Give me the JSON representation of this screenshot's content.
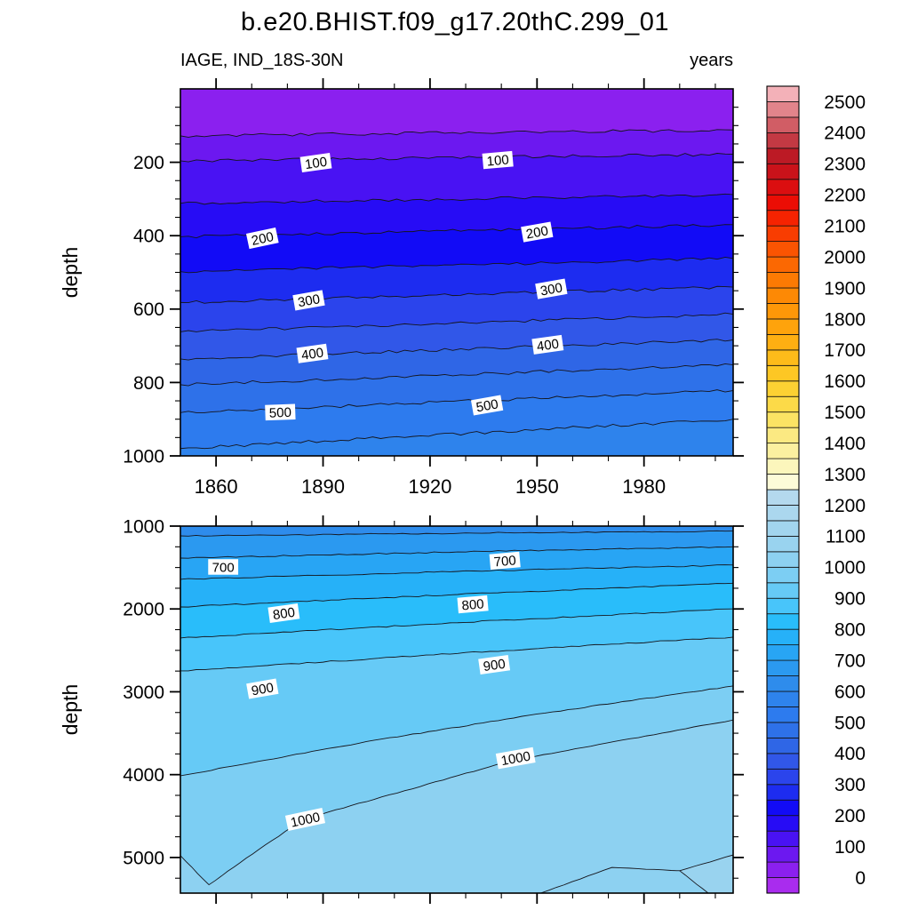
{
  "title": "b.e20.BHIST.f09_g17.20thC.299_01",
  "field_label": "IAGE, IND_18S-30N",
  "units_label": "years",
  "colorbar": {
    "value_min": -50,
    "value_step": 50,
    "tick_labels": [
      "0",
      "100",
      "200",
      "300",
      "400",
      "500",
      "600",
      "700",
      "800",
      "900",
      "1000",
      "1100",
      "1200",
      "1300",
      "1400",
      "1500",
      "1600",
      "1700",
      "1800",
      "1900",
      "2000",
      "2100",
      "2200",
      "2300",
      "2400",
      "2500"
    ],
    "cell_colors": [
      "#A92CEE",
      "#8B20EF",
      "#6C18F0",
      "#4912F3",
      "#270CF5",
      "#120BF6",
      "#1D2CF0",
      "#2B44EC",
      "#3157E8",
      "#2F66E6",
      "#2E71E9",
      "#2D7BEE",
      "#2E83EC",
      "#2E8CEC",
      "#2B99F0",
      "#28A5F4",
      "#26B1F8",
      "#29BDFA",
      "#48C5FA",
      "#66CAF6",
      "#7CCEF3",
      "#8DD1F1",
      "#99D3EF",
      "#A2D5EE",
      "#ABD7EE",
      "#B4D9EE",
      "#FDFBD8",
      "#FCF6BC",
      "#FBF0A0",
      "#FBE982",
      "#FBE364",
      "#FCDA48",
      "#FCD133",
      "#FDC724",
      "#FDBB1A",
      "#FEAF12",
      "#FEA30C",
      "#FE9708",
      "#FD8905",
      "#FC7A03",
      "#FB6802",
      "#FA5402",
      "#F83D01",
      "#F52301",
      "#EB0D05",
      "#DB0E10",
      "#CA121A",
      "#BC1A25",
      "#C33943",
      "#D15D65",
      "#E2848B",
      "#F3B1B8"
    ]
  },
  "chart_data": [
    {
      "type": "contour-filled",
      "panel": "upper",
      "x_range": [
        1850,
        2005
      ],
      "x_major_ticks": [
        1860,
        1890,
        1920,
        1950,
        1980
      ],
      "x_tick_labels": [
        "1860",
        "1890",
        "1920",
        "1950",
        "1980"
      ],
      "x_minor_step": 10,
      "y_range": [
        0,
        1000
      ],
      "y_major_ticks": [
        200,
        400,
        600,
        800,
        1000
      ],
      "y_minor_step": 50,
      "ylabel": "depth",
      "grid": false,
      "base_level": 0,
      "contour_interval": 50,
      "wiggle": 1.7,
      "contours": [
        {
          "level": 50,
          "points": [
            [
              1850,
              128
            ],
            [
              2005,
              112
            ]
          ]
        },
        {
          "level": 100,
          "points": [
            [
              1850,
              196
            ],
            [
              2005,
              178
            ]
          ]
        },
        {
          "level": 150,
          "points": [
            [
              1850,
              312
            ],
            [
              2005,
              288
            ]
          ]
        },
        {
          "level": 200,
          "points": [
            [
              1850,
              403
            ],
            [
              2005,
              370
            ]
          ]
        },
        {
          "level": 250,
          "points": [
            [
              1850,
              498
            ],
            [
              2005,
              462
            ]
          ]
        },
        {
          "level": 300,
          "points": [
            [
              1850,
              582
            ],
            [
              2005,
              540
            ]
          ]
        },
        {
          "level": 350,
          "points": [
            [
              1850,
              662
            ],
            [
              2005,
              614
            ]
          ]
        },
        {
          "level": 400,
          "points": [
            [
              1850,
              736
            ],
            [
              2005,
              684
            ]
          ]
        },
        {
          "level": 450,
          "points": [
            [
              1850,
              806
            ],
            [
              2005,
              752
            ]
          ]
        },
        {
          "level": 500,
          "points": [
            [
              1850,
              882
            ],
            [
              2005,
              822
            ]
          ]
        },
        {
          "level": 550,
          "points": [
            [
              1850,
              980
            ],
            [
              2005,
              900
            ]
          ]
        }
      ],
      "contour_labels": [
        {
          "text": "100",
          "year": 1888,
          "depth": 201,
          "rot": -8
        },
        {
          "text": "100",
          "year": 1939,
          "depth": 194,
          "rot": -5
        },
        {
          "text": "200",
          "year": 1873,
          "depth": 407,
          "rot": -12
        },
        {
          "text": "200",
          "year": 1950,
          "depth": 390,
          "rot": -10
        },
        {
          "text": "300",
          "year": 1886,
          "depth": 576,
          "rot": -10
        },
        {
          "text": "300",
          "year": 1954,
          "depth": 545,
          "rot": -10
        },
        {
          "text": "400",
          "year": 1887,
          "depth": 721,
          "rot": -8
        },
        {
          "text": "400",
          "year": 1953,
          "depth": 697,
          "rot": -8
        },
        {
          "text": "500",
          "year": 1878,
          "depth": 881,
          "rot": -2
        },
        {
          "text": "500",
          "year": 1936,
          "depth": 862,
          "rot": -10
        }
      ]
    },
    {
      "type": "contour-filled",
      "panel": "lower",
      "x_range": [
        1850,
        2005
      ],
      "x_major_ticks": [
        1860,
        1890,
        1920,
        1950,
        1980
      ],
      "x_minor_step": 10,
      "y_range": [
        1000,
        5430
      ],
      "y_major_ticks": [
        1000,
        2000,
        3000,
        4000,
        5000
      ],
      "y_minor_step": 250,
      "ylabel": "depth",
      "grid": false,
      "base_level": 600,
      "contour_interval": 50,
      "wiggle": 0.7,
      "contours": [
        {
          "level": 650,
          "points": [
            [
              1850,
              1118
            ],
            [
              1930,
              1085
            ],
            [
              2005,
              1060
            ]
          ]
        },
        {
          "level": 700,
          "points": [
            [
              1850,
              1386
            ],
            [
              1930,
              1310
            ],
            [
              2005,
              1250
            ]
          ]
        },
        {
          "level": 750,
          "points": [
            [
              1850,
              1643
            ],
            [
              1930,
              1545
            ],
            [
              2005,
              1470
            ]
          ]
        },
        {
          "level": 800,
          "points": [
            [
              1850,
              1976
            ],
            [
              1930,
              1820
            ],
            [
              2005,
              1690
            ]
          ]
        },
        {
          "level": 850,
          "points": [
            [
              1850,
              2351
            ],
            [
              1930,
              2160
            ],
            [
              2005,
              2000
            ]
          ]
        },
        {
          "level": 900,
          "points": [
            [
              1850,
              2748
            ],
            [
              1930,
              2530
            ],
            [
              2005,
              2340
            ]
          ]
        },
        {
          "level": 950,
          "points": [
            [
              1850,
              4013
            ],
            [
              1900,
              3620
            ],
            [
              1950,
              3270
            ],
            [
              2005,
              2930
            ]
          ],
          "amp": 0.5
        },
        {
          "level": 1000,
          "points": [
            [
              1850,
              4977
            ],
            [
              1858,
              5330
            ],
            [
              1872,
              4900
            ],
            [
              1885,
              4530
            ],
            [
              1943,
              3830
            ],
            [
              2005,
              3340
            ]
          ],
          "amp": 0.4
        },
        {
          "level": 1050,
          "points": [
            [
              2005,
              4970
            ],
            [
              1990,
              5160
            ],
            [
              1998,
              5430
            ]
          ],
          "close": "br",
          "amp": 0.3
        },
        {
          "level": 1050,
          "points": [
            [
              1951,
              5430
            ],
            [
              1971,
              5120
            ],
            [
              1990,
              5160
            ]
          ],
          "fill": false,
          "amp": 0.3
        }
      ],
      "contour_labels": [
        {
          "text": "700",
          "year": 1862,
          "depth": 1493,
          "rot": 0
        },
        {
          "text": "700",
          "year": 1941,
          "depth": 1418,
          "rot": -5
        },
        {
          "text": "800",
          "year": 1879,
          "depth": 2051,
          "rot": -8
        },
        {
          "text": "800",
          "year": 1932,
          "depth": 1944,
          "rot": -5
        },
        {
          "text": "900",
          "year": 1873,
          "depth": 2963,
          "rot": -10
        },
        {
          "text": "900",
          "year": 1938,
          "depth": 2673,
          "rot": -8
        },
        {
          "text": "1000",
          "year": 1885,
          "depth": 4540,
          "rot": -12
        },
        {
          "text": "1000",
          "year": 1944,
          "depth": 3800,
          "rot": -10
        }
      ]
    }
  ]
}
